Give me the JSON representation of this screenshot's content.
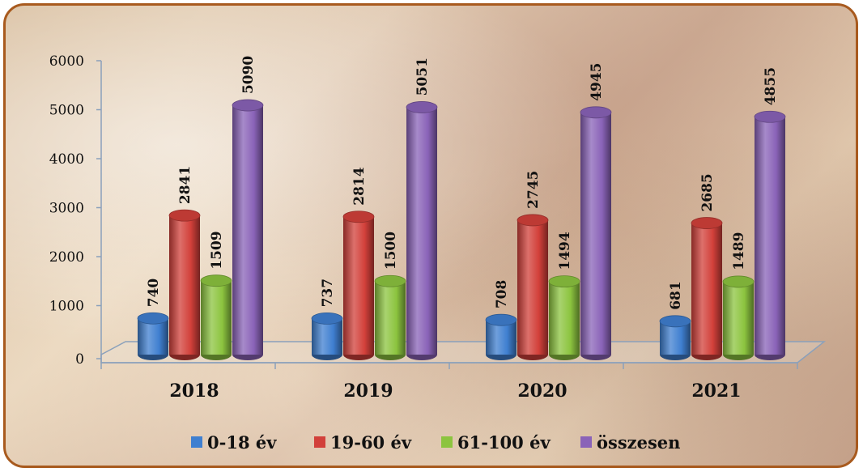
{
  "chart_data": {
    "type": "bar",
    "categories": [
      "2018",
      "2019",
      "2020",
      "2021"
    ],
    "series": [
      {
        "name": "0-18 év",
        "color": "#3f7fd0",
        "values": [
          740,
          737,
          708,
          681
        ]
      },
      {
        "name": "19-60 év",
        "color": "#d2403a",
        "values": [
          2841,
          2814,
          2745,
          2685
        ]
      },
      {
        "name": "61-100 év",
        "color": "#8cc43f",
        "values": [
          1509,
          1500,
          1494,
          1489
        ]
      },
      {
        "name": "összesen",
        "color": "#8a63b8",
        "values": [
          5090,
          5051,
          4945,
          4855
        ]
      }
    ],
    "ylim": [
      0,
      6000
    ],
    "yticks": [
      0,
      1000,
      2000,
      3000,
      4000,
      5000,
      6000
    ],
    "legend_position": "bottom",
    "grid": false,
    "style": "3d-cylinder"
  }
}
